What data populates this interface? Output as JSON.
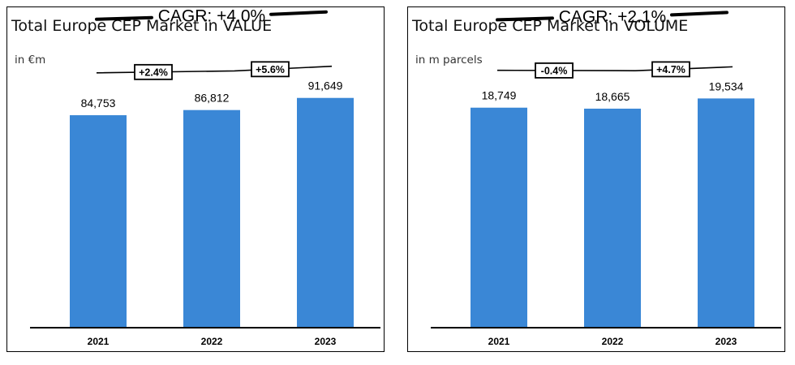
{
  "chart_data": [
    {
      "type": "bar",
      "title": "Total Europe CEP Market in VALUE",
      "subtitle": "in €m",
      "categories": [
        "2021",
        "2022",
        "2023"
      ],
      "values": [
        84753,
        86812,
        91649
      ],
      "value_labels": [
        "84,753",
        "86,812",
        "91,649"
      ],
      "ylim": [
        0,
        110000
      ],
      "cagr_label": "CAGR: +4.0%",
      "growth_labels": [
        "+2.4%",
        "+5.6%"
      ],
      "bar_color": "#3a87d6",
      "grid": false
    },
    {
      "type": "bar",
      "title": "Total Europe CEP Market in VOLUME",
      "subtitle": "in m parcels",
      "categories": [
        "2021",
        "2022",
        "2023"
      ],
      "values": [
        18749,
        18665,
        19534
      ],
      "value_labels": [
        "18,749",
        "18,665",
        "19,534"
      ],
      "ylim": [
        0,
        23500
      ],
      "cagr_label": "CAGR: +2.1%",
      "growth_labels": [
        "-0.4%",
        "+4.7%"
      ],
      "bar_color": "#3a87d6",
      "grid": false
    }
  ]
}
